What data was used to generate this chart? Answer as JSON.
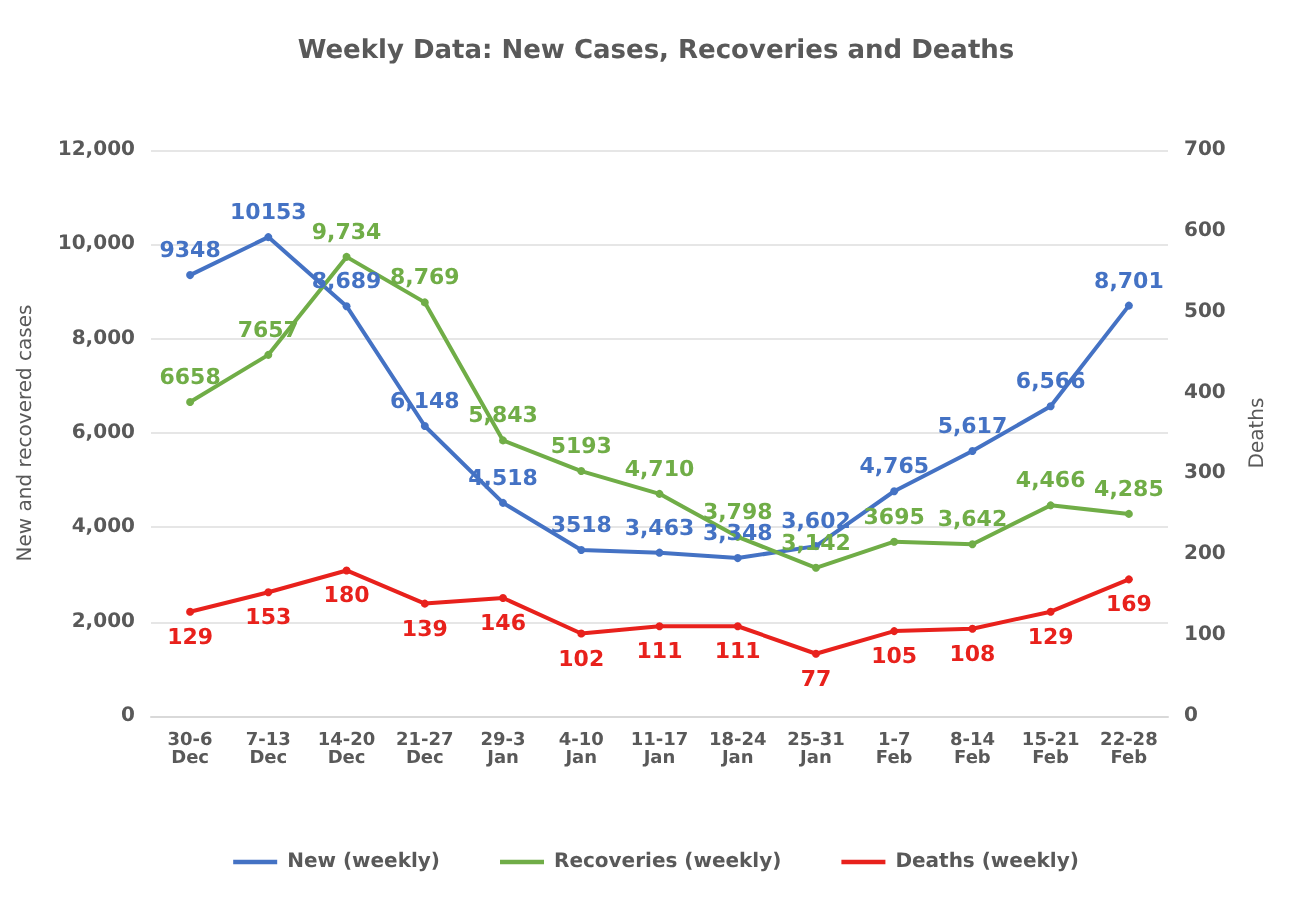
{
  "chart_data": {
    "type": "line",
    "title": "Weekly Data: New Cases, Recoveries and Deaths",
    "ylabel": "New and recovered cases",
    "y2label": "Deaths",
    "categories": [
      "30-6 Dec",
      "7-13 Dec",
      "14-20 Dec",
      "21-27 Dec",
      "29-3 Jan",
      "4-10 Jan",
      "11-17 Jan",
      "18-24 Jan",
      "25-31 Jan",
      "1-7 Feb",
      "8-14 Feb",
      "15-21 Feb",
      "22-28 Feb"
    ],
    "series": [
      {
        "name": "New (weekly)",
        "color": "#4472c4",
        "values": [
          9348,
          10153,
          8689,
          6148,
          4518,
          3518,
          3463,
          3348,
          3602,
          4765,
          5617,
          6566,
          8701
        ],
        "value_labels": [
          "9348",
          "10153",
          "8,689",
          "6,148",
          "4,518",
          "3518",
          "3,463",
          "3,348",
          "3,602",
          "4,765",
          "5,617",
          "6,566",
          "8,701"
        ]
      },
      {
        "name": "Recoveries (weekly)",
        "color": "#70ad47",
        "values": [
          6658,
          7657,
          9734,
          8769,
          5843,
          5193,
          4710,
          3798,
          3142,
          3695,
          3642,
          4466,
          4285
        ],
        "value_labels": [
          "6658",
          "7657",
          "9,734",
          "8,769",
          "5,843",
          "5193",
          "4,710",
          "3,798",
          "3,142",
          "3695",
          "3,642",
          "4,466",
          "4,285"
        ]
      },
      {
        "name": "Deaths (weekly)",
        "color": "#e8211c",
        "axis": "y2",
        "values": [
          129,
          153,
          180,
          139,
          146,
          102,
          111,
          111,
          77,
          105,
          108,
          129,
          169
        ],
        "value_labels": [
          "129",
          "153",
          "180",
          "139",
          "146",
          "102",
          "111",
          "111",
          "77",
          "105",
          "108",
          "129",
          "169"
        ]
      }
    ],
    "ylim": [
      0,
      12000
    ],
    "yticks": [
      0,
      {
        "value": 2000,
        "label": "2,000"
      },
      {
        "value": 4000,
        "label": "4,000"
      },
      {
        "value": 6000,
        "label": "6,000"
      },
      {
        "value": 8000,
        "label": "8,000"
      },
      {
        "value": 10000,
        "label": "10,000"
      },
      {
        "value": 12000,
        "label": "12,000"
      }
    ],
    "y2lim": [
      0,
      700
    ],
    "y2ticks": [
      0,
      100,
      200,
      300,
      400,
      500,
      600,
      700
    ],
    "grid": "y",
    "legend": "bottom",
    "marker": "circle",
    "line_style": "solid"
  }
}
